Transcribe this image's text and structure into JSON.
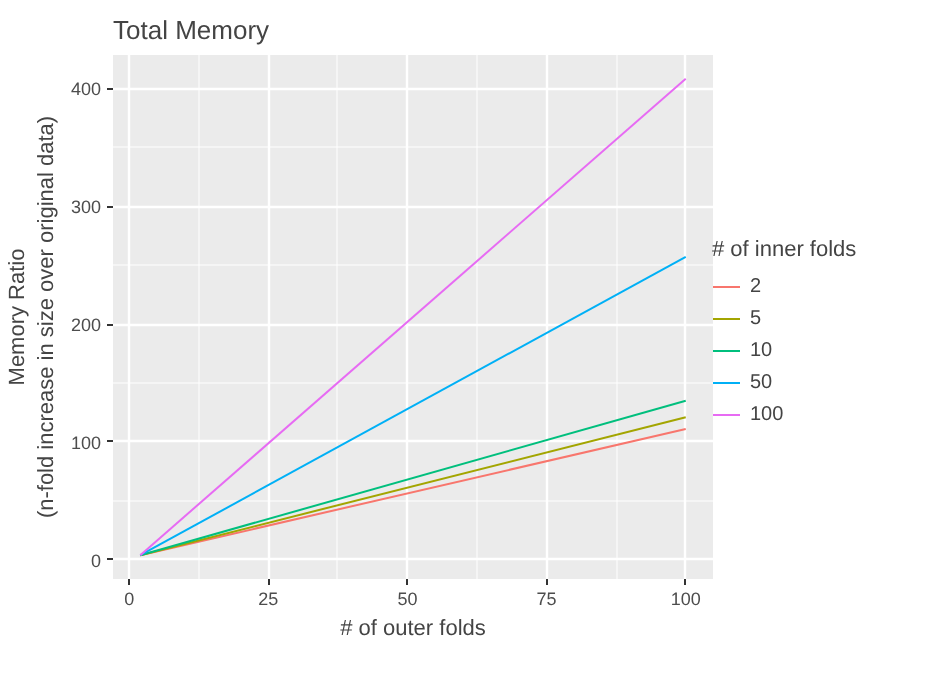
{
  "chart_data": {
    "type": "line",
    "title": "Total Memory",
    "xlabel": "# of outer folds",
    "ylabel": "Memory Ratio\n(n-fold increase in size over original data)",
    "legend_title": "# of inner folds",
    "x": [
      2,
      100
    ],
    "series": [
      {
        "name": "2",
        "color": "#f8766d",
        "values": [
          4,
          111
        ]
      },
      {
        "name": "5",
        "color": "#a3a500",
        "values": [
          4,
          121
        ]
      },
      {
        "name": "10",
        "color": "#00bf7d",
        "values": [
          4,
          135
        ]
      },
      {
        "name": "50",
        "color": "#00b0f6",
        "values": [
          4,
          257
        ]
      },
      {
        "name": "100",
        "color": "#e76bf3",
        "values": [
          4,
          408
        ]
      }
    ],
    "xlim": [
      -2.9,
      104.9
    ],
    "ylim": [
      -16.2,
      428.2
    ],
    "xticks": [
      0,
      25,
      50,
      75,
      100
    ],
    "yticks": [
      0,
      100,
      200,
      300,
      400
    ],
    "grid": true,
    "legend": "right"
  }
}
